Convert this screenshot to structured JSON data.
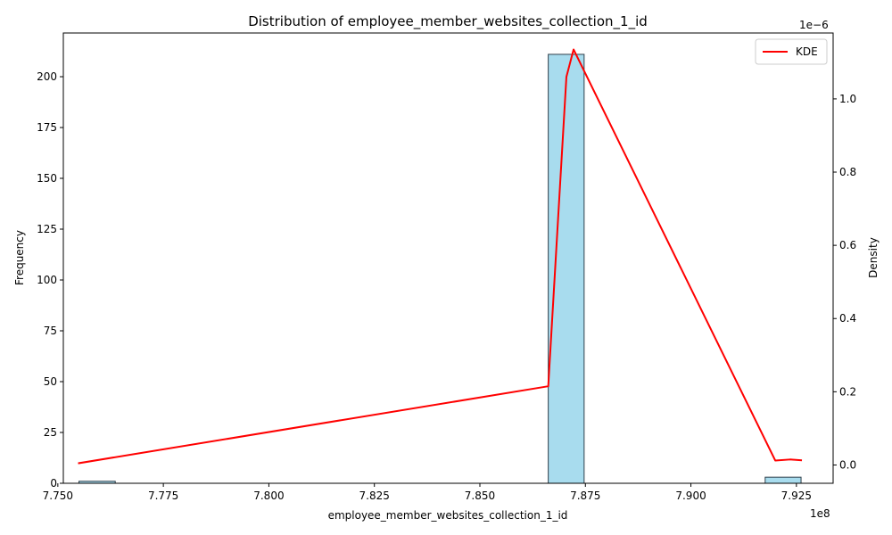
{
  "chart_data": {
    "type": "bar",
    "title": "Distribution of employee_member_websites_collection_1_id",
    "xlabel": "employee_member_websites_collection_1_id",
    "ylabel": "Frequency",
    "y2label": "Density",
    "x_offset_text": "1e8",
    "y2_offset_text": "1e−6",
    "xlim": [
      7.7513,
      7.9337
    ],
    "ylim": [
      0,
      221.5
    ],
    "y2lim": [
      -0.05,
      1.18
    ],
    "x_ticks": [
      7.75,
      7.775,
      7.8,
      7.825,
      7.85,
      7.875,
      7.9,
      7.925
    ],
    "x_tick_labels": [
      "7.750",
      "7.775",
      "7.800",
      "7.825",
      "7.850",
      "7.875",
      "7.900",
      "7.925"
    ],
    "y_ticks": [
      0,
      25,
      50,
      75,
      100,
      125,
      150,
      175,
      200
    ],
    "y_tick_labels": [
      "0",
      "25",
      "50",
      "75",
      "100",
      "125",
      "150",
      "175",
      "200"
    ],
    "y2_ticks": [
      0.0,
      0.2,
      0.4,
      0.6,
      0.8,
      1.0
    ],
    "y2_tick_labels": [
      "0.0",
      "0.2",
      "0.4",
      "0.6",
      "0.8",
      "1.0"
    ],
    "histogram": {
      "bins": [
        {
          "x0": 7.755,
          "x1": 7.7636,
          "count": 1
        },
        {
          "x0": 7.8662,
          "x1": 7.8747,
          "count": 211
        },
        {
          "x0": 7.9176,
          "x1": 7.9261,
          "count": 3
        }
      ],
      "fill_color": "#a8dcee",
      "edge_color": "#2f3f4a"
    },
    "series": [
      {
        "name": "KDE",
        "color": "#ff0000",
        "x": [
          7.755,
          7.8662,
          7.8705,
          7.8722,
          7.92,
          7.9235,
          7.9261
        ],
        "y": [
          0.005,
          0.215,
          1.06,
          1.135,
          0.012,
          0.015,
          0.013
        ]
      }
    ],
    "legend": {
      "position": "top-right",
      "entries": [
        "KDE"
      ]
    },
    "grid": false
  }
}
